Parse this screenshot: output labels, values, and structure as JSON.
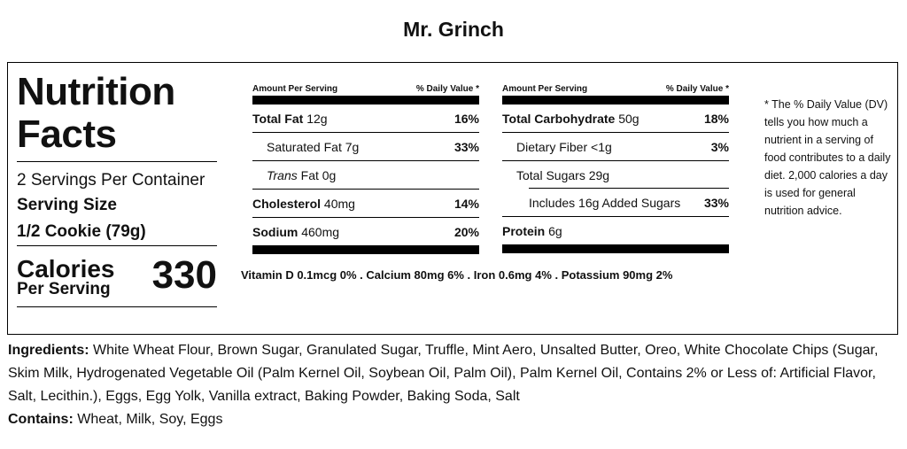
{
  "title": "Mr. Grinch",
  "label": {
    "heading": "Nutrition Facts",
    "servings": "2 Servings Per Container",
    "serving_size_label": "Serving Size",
    "serving_size": "1/2 Cookie (79g)",
    "calories_label": "Calories",
    "per_serving": "Per Serving",
    "calories": "330"
  },
  "header": {
    "amount": "Amount Per Serving",
    "dv": "% Daily Value *"
  },
  "left_rows": [
    {
      "name": "Total Fat",
      "amount": "12g",
      "pct": "16%"
    },
    {
      "name": "Saturated Fat",
      "amount": "7g",
      "pct": "33%"
    },
    {
      "name": "Trans",
      "rest": "Fat 0g",
      "pct": ""
    },
    {
      "name": "Cholesterol",
      "amount": "40mg",
      "pct": "14%"
    },
    {
      "name": "Sodium",
      "amount": "460mg",
      "pct": "20%"
    }
  ],
  "right_rows": [
    {
      "name": "Total Carbohydrate",
      "amount": "50g",
      "pct": "18%"
    },
    {
      "name": "Dietary Fiber",
      "amount": "<1g",
      "pct": "3%"
    },
    {
      "name": "Total Sugars",
      "amount": "29g",
      "pct": ""
    },
    {
      "name": "Includes 16g Added Sugars",
      "amount": "",
      "pct": "33%"
    },
    {
      "name": "Protein",
      "amount": "6g",
      "pct": ""
    }
  ],
  "vitamins": "Vitamin D 0.1mcg 0% . Calcium 80mg 6% . Iron 0.6mg 4% . Potassium 90mg 2%",
  "footnote": "* The % Daily Value (DV) tells you how much a nutrient in a serving of food contributes to a daily diet. 2,000 calories a day is used for general nutrition advice.",
  "ingredients_label": "Ingredients:",
  "ingredients": "White Wheat Flour, Brown Sugar, Granulated Sugar, Truffle, Mint Aero, Unsalted Butter, Oreo, White Chocolate Chips (Sugar, Skim Milk, Hydrogenated Vegetable Oil (Palm Kernel Oil, Soybean Oil, Palm Oil), Palm Kernel Oil, Contains 2% or Less of: Artificial Flavor, Salt, Lecithin.), Eggs, Egg Yolk, Vanilla extract, Baking Powder, Baking Soda, Salt",
  "contains_label": "Contains:",
  "contains": "Wheat, Milk, Soy, Eggs"
}
